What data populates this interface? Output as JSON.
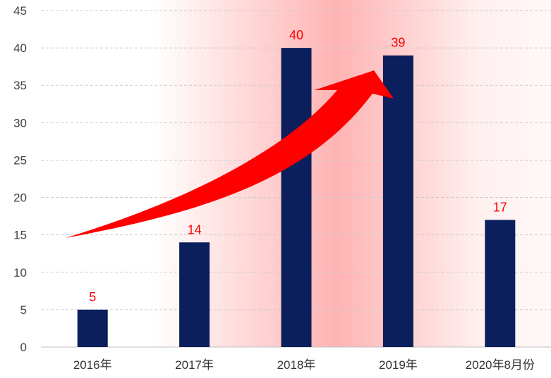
{
  "chart_data": {
    "type": "bar",
    "title": "",
    "xlabel": "",
    "ylabel": "",
    "categories": [
      "2016年",
      "2017年",
      "2018年",
      "2019年",
      "2020年8月份"
    ],
    "values": [
      5,
      14,
      40,
      39,
      17
    ],
    "data_labels": [
      "5",
      "14",
      "40",
      "39",
      "17"
    ],
    "ylim": [
      0,
      45
    ],
    "yticks": [
      0,
      5,
      10,
      15,
      20,
      25,
      30,
      35,
      40,
      45
    ],
    "ytick_labels": [
      "0",
      "5",
      "10",
      "15",
      "20",
      "25",
      "30",
      "35",
      "40",
      "45"
    ],
    "grid": "horizontal dashed",
    "legend": "none",
    "annotation": "red upward trend arrow",
    "colors": {
      "bar": "#0a1f5c",
      "data_label": "#ff0000",
      "arrow": "#ff0000",
      "background_glow": "#ffb3b3",
      "grid": "#cccccc"
    }
  }
}
